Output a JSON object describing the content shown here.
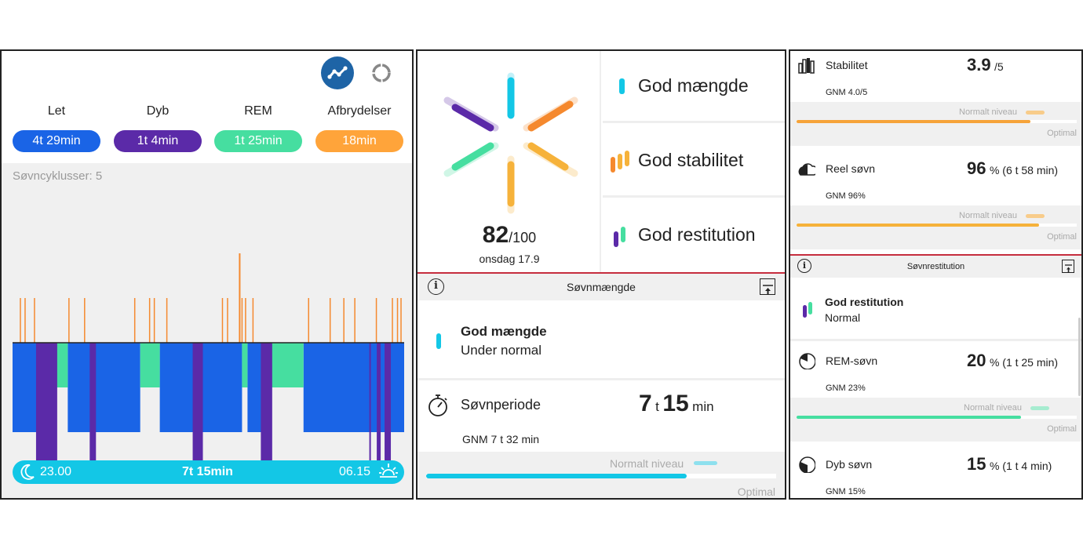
{
  "panel1": {
    "categories": [
      {
        "label": "Let",
        "value": "4t 29min",
        "color": "#1a64e6"
      },
      {
        "label": "Dyb",
        "value": "1t 4min",
        "color": "#5b2aa8"
      },
      {
        "label": "REM",
        "value": "1t 25min",
        "color": "#46dea0"
      },
      {
        "label": "Afbrydelser",
        "value": "18min",
        "color": "#ffa43a"
      }
    ],
    "clusters": "Søvncyklusser: 5",
    "bedtime": "23.00",
    "duration": "7t 15min",
    "wake": "06.15",
    "hypnogram": {
      "time_range": [
        0,
        1
      ],
      "light_segments": [
        [
          0,
          0.063
        ],
        [
          0.141,
          0.326
        ],
        [
          0.376,
          0.586
        ],
        [
          0.6,
          0.636
        ],
        [
          0.743,
          1
        ]
      ],
      "rem_segments": [
        [
          0.063,
          0.141
        ],
        [
          0.326,
          0.376
        ],
        [
          0.586,
          0.6
        ],
        [
          0.636,
          0.743
        ]
      ],
      "deep_segments": [
        [
          0.06,
          0.114
        ],
        [
          0.197,
          0.213
        ],
        [
          0.46,
          0.486
        ],
        [
          0.634,
          0.663
        ],
        [
          0.911,
          0.915
        ],
        [
          0.93,
          0.94
        ],
        [
          0.95,
          0.966
        ]
      ],
      "awake_marks": [
        0.02,
        0.032,
        0.056,
        0.144,
        0.184,
        0.312,
        0.35,
        0.362,
        0.394,
        0.536,
        0.549,
        0.586,
        0.595,
        0.614,
        0.756,
        0.811,
        0.846,
        0.874,
        0.929,
        0.97,
        0.983,
        0.992
      ],
      "awake_heights": [
        57,
        57,
        57,
        57,
        57,
        57,
        57,
        57,
        57,
        57,
        57,
        57,
        57,
        57,
        57,
        57,
        57,
        57,
        57,
        57,
        57,
        57
      ],
      "long_awake_mark": 0.58,
      "long_awake_height": 114
    }
  },
  "panel2": {
    "score": "82",
    "score_max": "/100",
    "date": "onsdag 17.9",
    "statuses": [
      "God mængde",
      "God stabilitet",
      "God restitution"
    ],
    "section_title": "Søvnmængde",
    "detail_title": "God mængde",
    "detail_sub": "Under normal",
    "period_label": "Søvnperiode",
    "period_hours": "7",
    "period_h_unit": "t",
    "period_minutes": "15",
    "period_m_unit": "min",
    "period_avg": "GNM 7 t 32 min",
    "normal_label": "Normalt niveau",
    "optimal_label": "Optimal",
    "period_fill": 0.745
  },
  "panel3": {
    "stability": {
      "label": "Stabilitet",
      "value": "3.9",
      "unit": "/5",
      "avg": "GNM 4.0/5",
      "fill": 0.834
    },
    "real_sleep": {
      "label": "Reel søvn",
      "value": "96",
      "unit": "% (6 t 58 min)",
      "avg": "GNM 96%",
      "fill": 0.865
    },
    "section_title": "Søvnrestitution",
    "restitution_title": "God restitution",
    "restitution_sub": "Normal",
    "rem": {
      "label": "REM-søvn",
      "value": "20",
      "unit": "% (1 t 25 min)",
      "avg": "GNM 23%",
      "fill": 0.801
    },
    "deep": {
      "label": "Dyb søvn",
      "value": "15",
      "unit": "% (1 t 4 min)",
      "avg": "GNM 15%"
    },
    "normal_label": "Normalt niveau",
    "optimal_label": "Optimal"
  },
  "colors": {
    "cyan": "#13c7e6",
    "orange": "#f5892e",
    "yellow": "#f6b23a",
    "purple": "#5b2aa8",
    "green": "#46dea0",
    "blue": "#1a64e6",
    "red_line": "#c62d3e"
  }
}
